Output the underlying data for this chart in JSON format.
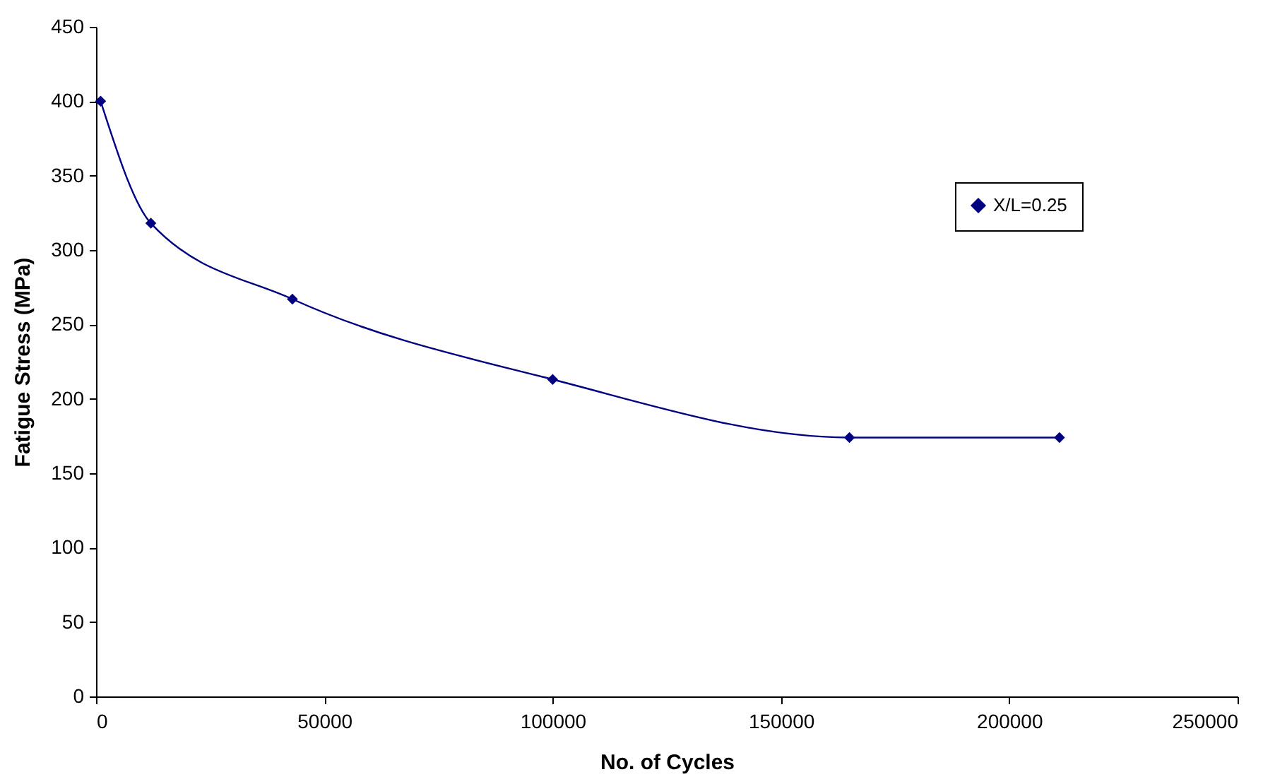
{
  "chart_data": {
    "type": "line",
    "xlabel": "No. of Cycles",
    "ylabel": "Fatigue Stress (MPa)",
    "x": [
      1000,
      12000,
      43000,
      100000,
      165000,
      211000
    ],
    "series": [
      {
        "name": "X/L=0.25",
        "color": "#000080",
        "values": [
          400,
          318,
          267,
          213,
          174,
          174
        ]
      }
    ],
    "xlim": [
      0,
      250000
    ],
    "xticks": [
      0,
      50000,
      100000,
      150000,
      200000,
      250000
    ],
    "ylim": [
      0,
      450
    ],
    "yticks": [
      0,
      50,
      100,
      150,
      200,
      250,
      300,
      350,
      400,
      450
    ],
    "legend": "top right",
    "marker": "diamond",
    "line_style": "solid"
  }
}
